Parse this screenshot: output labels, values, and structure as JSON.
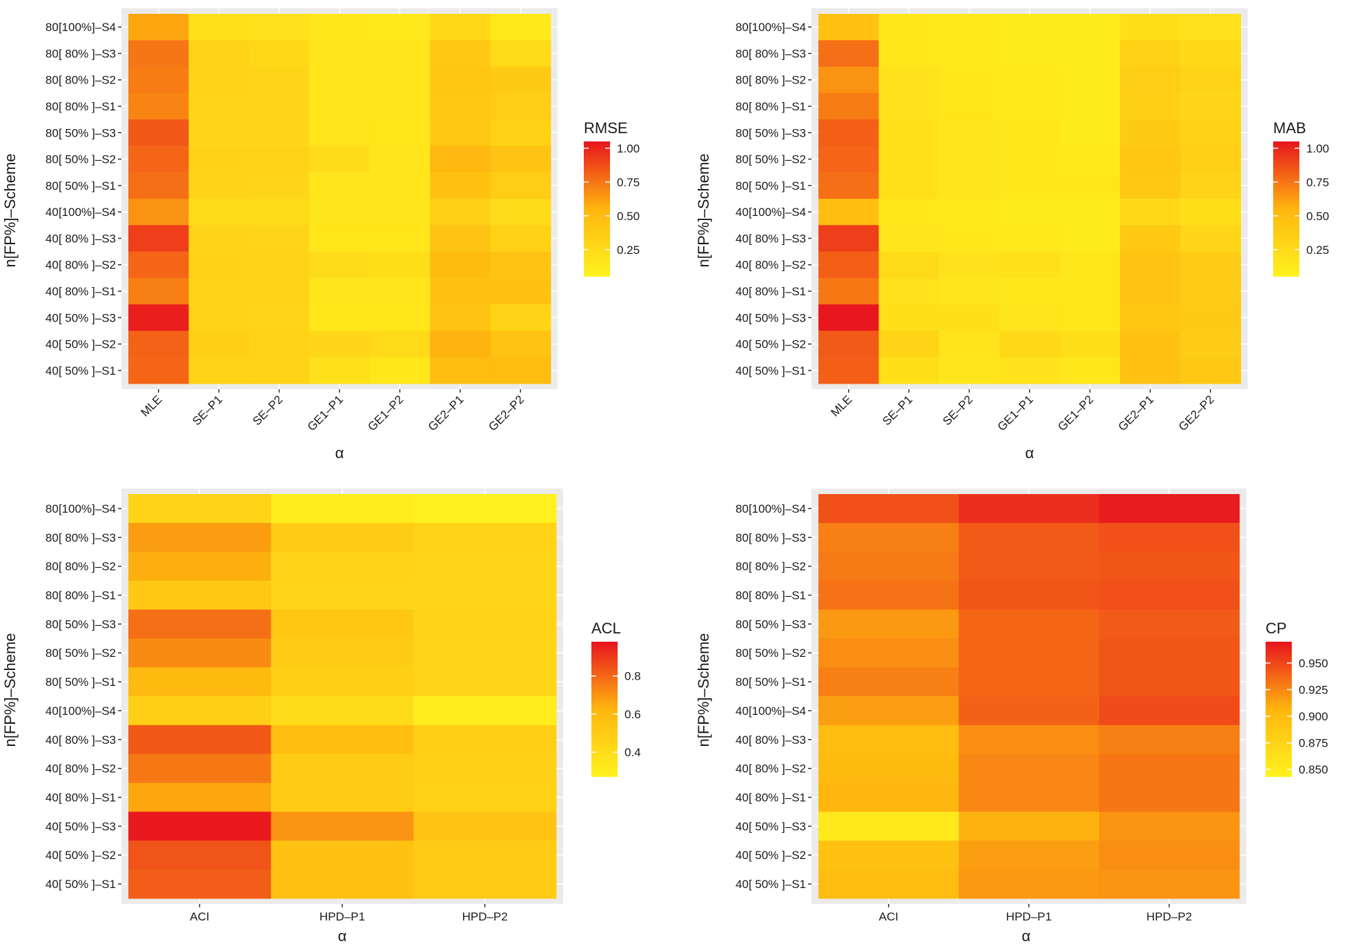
{
  "colors": {
    "panel_bg": "#EBEBEB",
    "grid": "#FFFFFF",
    "tick": "#333333",
    "text": "#1a1a1a",
    "scale_low": "#FFF21F",
    "scale_mid": "#FFB60F",
    "scale_high": "#E8141E"
  },
  "chart_data": [
    {
      "id": "rmse",
      "type": "heatmap",
      "ylabel": "n[FP%]–Scheme",
      "xlabel": "α",
      "legend_title": "RMSE",
      "legend_breaks": [
        "1.00",
        "0.75",
        "0.50",
        "0.25"
      ],
      "x_tick_rotation": "-45deg",
      "categories_x": [
        "MLE",
        "SE–P1",
        "SE–P2",
        "GE1–P1",
        "GE1–P2",
        "GE2–P1",
        "GE2–P2"
      ],
      "categories_y": [
        "80[100%]–S4",
        "80[ 80% ]–S3",
        "80[ 80% ]–S2",
        "80[ 80% ]–S1",
        "80[ 50% ]–S3",
        "80[ 50% ]–S2",
        "80[ 50% ]–S1",
        "40[100%]–S4",
        "40[ 80% ]–S3",
        "40[ 80% ]–S2",
        "40[ 80% ]–S1",
        "40[ 50% ]–S3",
        "40[ 50% ]–S2",
        "40[ 50% ]–S1"
      ],
      "scale_range": [
        0.05,
        1.05
      ],
      "values": [
        [
          0.6,
          0.2,
          0.18,
          0.14,
          0.13,
          0.26,
          0.13
        ],
        [
          0.75,
          0.3,
          0.27,
          0.15,
          0.15,
          0.4,
          0.25
        ],
        [
          0.73,
          0.3,
          0.29,
          0.16,
          0.15,
          0.42,
          0.38
        ],
        [
          0.7,
          0.29,
          0.28,
          0.16,
          0.15,
          0.4,
          0.36
        ],
        [
          0.84,
          0.29,
          0.28,
          0.15,
          0.14,
          0.4,
          0.32
        ],
        [
          0.8,
          0.32,
          0.3,
          0.24,
          0.15,
          0.53,
          0.44
        ],
        [
          0.77,
          0.3,
          0.29,
          0.15,
          0.15,
          0.45,
          0.36
        ],
        [
          0.66,
          0.25,
          0.23,
          0.15,
          0.15,
          0.33,
          0.24
        ],
        [
          0.92,
          0.3,
          0.29,
          0.14,
          0.14,
          0.44,
          0.32
        ],
        [
          0.8,
          0.32,
          0.3,
          0.23,
          0.21,
          0.51,
          0.43
        ],
        [
          0.72,
          0.31,
          0.3,
          0.15,
          0.15,
          0.46,
          0.46
        ],
        [
          1.02,
          0.31,
          0.29,
          0.14,
          0.14,
          0.44,
          0.3
        ],
        [
          0.81,
          0.34,
          0.31,
          0.28,
          0.25,
          0.56,
          0.44
        ],
        [
          0.8,
          0.31,
          0.3,
          0.19,
          0.14,
          0.5,
          0.5
        ]
      ]
    },
    {
      "id": "mab",
      "type": "heatmap",
      "ylabel": "n[FP%]–Scheme",
      "xlabel": "α",
      "legend_title": "MAB",
      "legend_breaks": [
        "1.00",
        "0.75",
        "0.50",
        "0.25"
      ],
      "x_tick_rotation": "-45deg",
      "categories_x": [
        "MLE",
        "SE–P1",
        "SE–P2",
        "GE1–P1",
        "GE1–P2",
        "GE2–P1",
        "GE2–P2"
      ],
      "categories_y": [
        "80[100%]–S4",
        "80[ 80% ]–S3",
        "80[ 80% ]–S2",
        "80[ 80% ]–S1",
        "80[ 50% ]–S3",
        "80[ 50% ]–S2",
        "80[ 50% ]–S1",
        "40[100%]–S4",
        "40[ 80% ]–S3",
        "40[ 80% ]–S2",
        "40[ 80% ]–S1",
        "40[ 50% ]–S3",
        "40[ 50% ]–S2",
        "40[ 50% ]–S1"
      ],
      "scale_range": [
        0.05,
        1.05
      ],
      "values": [
        [
          0.45,
          0.14,
          0.13,
          0.12,
          0.12,
          0.22,
          0.18
        ],
        [
          0.77,
          0.14,
          0.13,
          0.12,
          0.12,
          0.32,
          0.26
        ],
        [
          0.66,
          0.18,
          0.14,
          0.13,
          0.12,
          0.36,
          0.3
        ],
        [
          0.73,
          0.18,
          0.14,
          0.13,
          0.12,
          0.34,
          0.28
        ],
        [
          0.82,
          0.2,
          0.15,
          0.14,
          0.12,
          0.38,
          0.32
        ],
        [
          0.8,
          0.2,
          0.15,
          0.14,
          0.13,
          0.42,
          0.33
        ],
        [
          0.77,
          0.2,
          0.15,
          0.14,
          0.14,
          0.4,
          0.31
        ],
        [
          0.48,
          0.14,
          0.13,
          0.12,
          0.12,
          0.26,
          0.22
        ],
        [
          0.92,
          0.15,
          0.14,
          0.13,
          0.12,
          0.39,
          0.28
        ],
        [
          0.82,
          0.25,
          0.18,
          0.19,
          0.14,
          0.44,
          0.37
        ],
        [
          0.74,
          0.18,
          0.15,
          0.14,
          0.14,
          0.44,
          0.37
        ],
        [
          1.04,
          0.22,
          0.22,
          0.15,
          0.14,
          0.42,
          0.38
        ],
        [
          0.83,
          0.3,
          0.17,
          0.27,
          0.21,
          0.46,
          0.37
        ],
        [
          0.82,
          0.21,
          0.15,
          0.18,
          0.14,
          0.46,
          0.4
        ]
      ]
    },
    {
      "id": "acl",
      "type": "heatmap",
      "ylabel": "n[FP%]–Scheme",
      "xlabel": "α",
      "legend_title": "ACL",
      "legend_breaks": [
        "0.8",
        "0.6",
        "0.4"
      ],
      "x_tick_rotation": "0deg",
      "categories_x": [
        "ACI",
        "HPD–P1",
        "HPD–P2"
      ],
      "categories_y": [
        "80[100%]–S4",
        "80[ 80% ]–S3",
        "80[ 80% ]–S2",
        "80[ 80% ]–S1",
        "80[ 50% ]–S3",
        "80[ 50% ]–S2",
        "80[ 50% ]–S1",
        "40[100%]–S4",
        "40[ 80% ]–S3",
        "40[ 80% ]–S2",
        "40[ 80% ]–S1",
        "40[ 50% ]–S3",
        "40[ 50% ]–S2",
        "40[ 50% ]–S1"
      ],
      "scale_range": [
        0.27,
        0.98
      ],
      "values": [
        [
          0.45,
          0.3,
          0.28
        ],
        [
          0.68,
          0.5,
          0.45
        ],
        [
          0.64,
          0.45,
          0.44
        ],
        [
          0.52,
          0.44,
          0.43
        ],
        [
          0.78,
          0.53,
          0.45
        ],
        [
          0.72,
          0.5,
          0.44
        ],
        [
          0.6,
          0.48,
          0.44
        ],
        [
          0.48,
          0.4,
          0.3
        ],
        [
          0.83,
          0.58,
          0.48
        ],
        [
          0.76,
          0.5,
          0.47
        ],
        [
          0.66,
          0.5,
          0.46
        ],
        [
          0.97,
          0.7,
          0.54
        ],
        [
          0.84,
          0.56,
          0.5
        ],
        [
          0.82,
          0.56,
          0.5
        ]
      ]
    },
    {
      "id": "cp",
      "type": "heatmap",
      "ylabel": "n[FP%]–Scheme",
      "xlabel": "α",
      "legend_title": "CP",
      "legend_breaks": [
        "0.950",
        "0.925",
        "0.900",
        "0.875",
        "0.850"
      ],
      "x_tick_rotation": "0deg",
      "categories_x": [
        "ACI",
        "HPD–P1",
        "HPD–P2"
      ],
      "categories_y": [
        "80[100%]–S4",
        "80[ 80% ]–S3",
        "80[ 80% ]–S2",
        "80[ 80% ]–S1",
        "80[ 50% ]–S3",
        "80[ 50% ]–S2",
        "80[ 50% ]–S1",
        "40[100%]–S4",
        "40[ 80% ]–S3",
        "40[ 80% ]–S2",
        "40[ 80% ]–S1",
        "40[ 50% ]–S3",
        "40[ 50% ]–S2",
        "40[ 50% ]–S1"
      ],
      "scale_range": [
        0.843,
        0.97
      ],
      "values": [
        [
          0.946,
          0.96,
          0.967
        ],
        [
          0.928,
          0.942,
          0.946
        ],
        [
          0.93,
          0.942,
          0.944
        ],
        [
          0.933,
          0.944,
          0.946
        ],
        [
          0.918,
          0.938,
          0.942
        ],
        [
          0.922,
          0.938,
          0.944
        ],
        [
          0.928,
          0.938,
          0.944
        ],
        [
          0.916,
          0.94,
          0.948
        ],
        [
          0.9,
          0.922,
          0.928
        ],
        [
          0.902,
          0.925,
          0.932
        ],
        [
          0.905,
          0.925,
          0.932
        ],
        [
          0.853,
          0.908,
          0.92
        ],
        [
          0.895,
          0.916,
          0.922
        ],
        [
          0.9,
          0.918,
          0.92
        ]
      ]
    }
  ]
}
